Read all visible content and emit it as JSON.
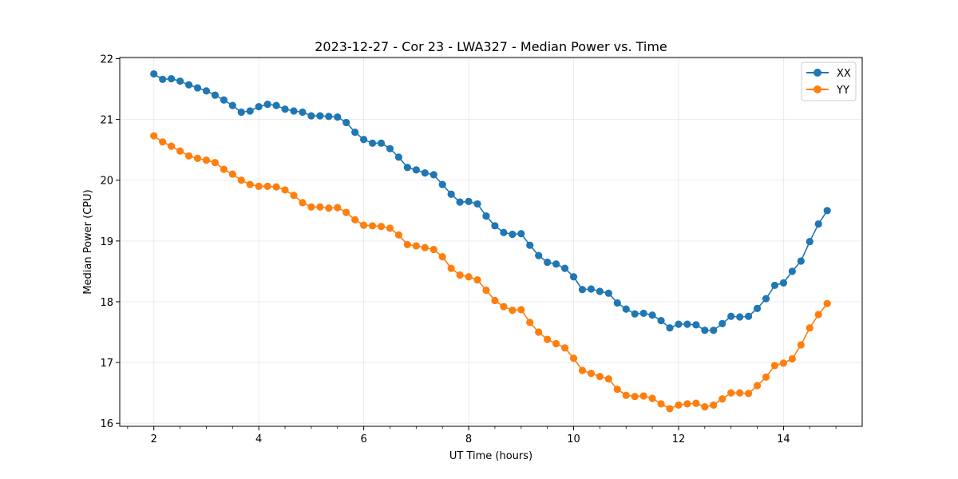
{
  "chart_data": {
    "type": "line",
    "title": "2023-12-27 - Cor 23 - LWA327 - Median Power vs. Time",
    "xlabel": "UT Time (hours)",
    "ylabel": "Median Power (CPU)",
    "xlim": [
      1.35,
      15.5
    ],
    "ylim": [
      15.95,
      22.02
    ],
    "xticks": [
      2,
      4,
      6,
      8,
      10,
      12,
      14
    ],
    "xtick_labels": [
      "2",
      "4",
      "6",
      "8",
      "10",
      "12",
      "14"
    ],
    "xminor_ticks": [
      1.5,
      2.5,
      3,
      3.5,
      4.5,
      5,
      5.5,
      6.5,
      7,
      7.5,
      8.5,
      9,
      9.5,
      10.5,
      11,
      11.5,
      12.5,
      13,
      13.5,
      14.5,
      15
    ],
    "yticks": [
      16,
      17,
      18,
      19,
      20,
      21,
      22
    ],
    "ytick_labels": [
      "16",
      "17",
      "18",
      "19",
      "20",
      "21",
      "22"
    ],
    "grid": true,
    "legend_position": "top-right",
    "x": [
      2.0,
      2.1667,
      2.3333,
      2.5,
      2.6667,
      2.8333,
      3.0,
      3.1667,
      3.3333,
      3.5,
      3.6667,
      3.8333,
      4.0,
      4.1667,
      4.3333,
      4.5,
      4.6667,
      4.8333,
      5.0,
      5.1667,
      5.3333,
      5.5,
      5.6667,
      5.8333,
      6.0,
      6.1667,
      6.3333,
      6.5,
      6.6667,
      6.8333,
      7.0,
      7.1667,
      7.3333,
      7.5,
      7.6667,
      7.8333,
      8.0,
      8.1667,
      8.3333,
      8.5,
      8.6667,
      8.8333,
      9.0,
      9.1667,
      9.3333,
      9.5,
      9.6667,
      9.8333,
      10.0,
      10.1667,
      10.3333,
      10.5,
      10.6667,
      10.8333,
      11.0,
      11.1667,
      11.3333,
      11.5,
      11.6667,
      11.8333,
      12.0,
      12.1667,
      12.3333,
      12.5,
      12.6667,
      12.8333,
      13.0,
      13.1667,
      13.3333,
      13.5,
      13.6667,
      13.8333,
      14.0,
      14.1667,
      14.3333,
      14.5,
      14.6667,
      14.8333
    ],
    "series": [
      {
        "name": "XX",
        "color": "#1f77b4",
        "values": [
          21.75,
          21.66,
          21.67,
          21.63,
          21.57,
          21.52,
          21.47,
          21.4,
          21.32,
          21.23,
          21.12,
          21.14,
          21.21,
          21.25,
          21.23,
          21.17,
          21.14,
          21.12,
          21.06,
          21.06,
          21.05,
          21.04,
          20.95,
          20.79,
          20.67,
          20.61,
          20.61,
          20.52,
          20.38,
          20.21,
          20.17,
          20.12,
          20.09,
          19.93,
          19.77,
          19.64,
          19.65,
          19.61,
          19.41,
          19.25,
          19.14,
          19.11,
          19.12,
          18.93,
          18.76,
          18.65,
          18.62,
          18.55,
          18.41,
          18.2,
          18.21,
          18.17,
          18.14,
          17.98,
          17.88,
          17.8,
          17.81,
          17.78,
          17.69,
          17.57,
          17.63,
          17.63,
          17.62,
          17.53,
          17.53,
          17.64,
          17.76,
          17.75,
          17.76,
          17.89,
          18.05,
          18.27,
          18.31,
          18.5,
          18.67,
          18.99,
          19.28,
          19.5
        ]
      },
      {
        "name": "YY",
        "color": "#ff7f0e",
        "values": [
          20.73,
          20.63,
          20.56,
          20.48,
          20.4,
          20.36,
          20.33,
          20.29,
          20.18,
          20.1,
          20.0,
          19.93,
          19.9,
          19.9,
          19.89,
          19.84,
          19.75,
          19.63,
          19.56,
          19.56,
          19.54,
          19.55,
          19.47,
          19.35,
          19.26,
          19.25,
          19.24,
          19.21,
          19.1,
          18.94,
          18.92,
          18.89,
          18.86,
          18.74,
          18.55,
          18.44,
          18.41,
          18.36,
          18.19,
          18.02,
          17.92,
          17.86,
          17.87,
          17.66,
          17.5,
          17.38,
          17.31,
          17.24,
          17.07,
          16.87,
          16.82,
          16.77,
          16.73,
          16.56,
          16.46,
          16.44,
          16.45,
          16.41,
          16.32,
          16.24,
          16.3,
          16.32,
          16.33,
          16.27,
          16.3,
          16.4,
          16.5,
          16.5,
          16.49,
          16.62,
          16.76,
          16.95,
          16.99,
          17.06,
          17.29,
          17.57,
          17.79,
          17.97
        ]
      }
    ]
  }
}
